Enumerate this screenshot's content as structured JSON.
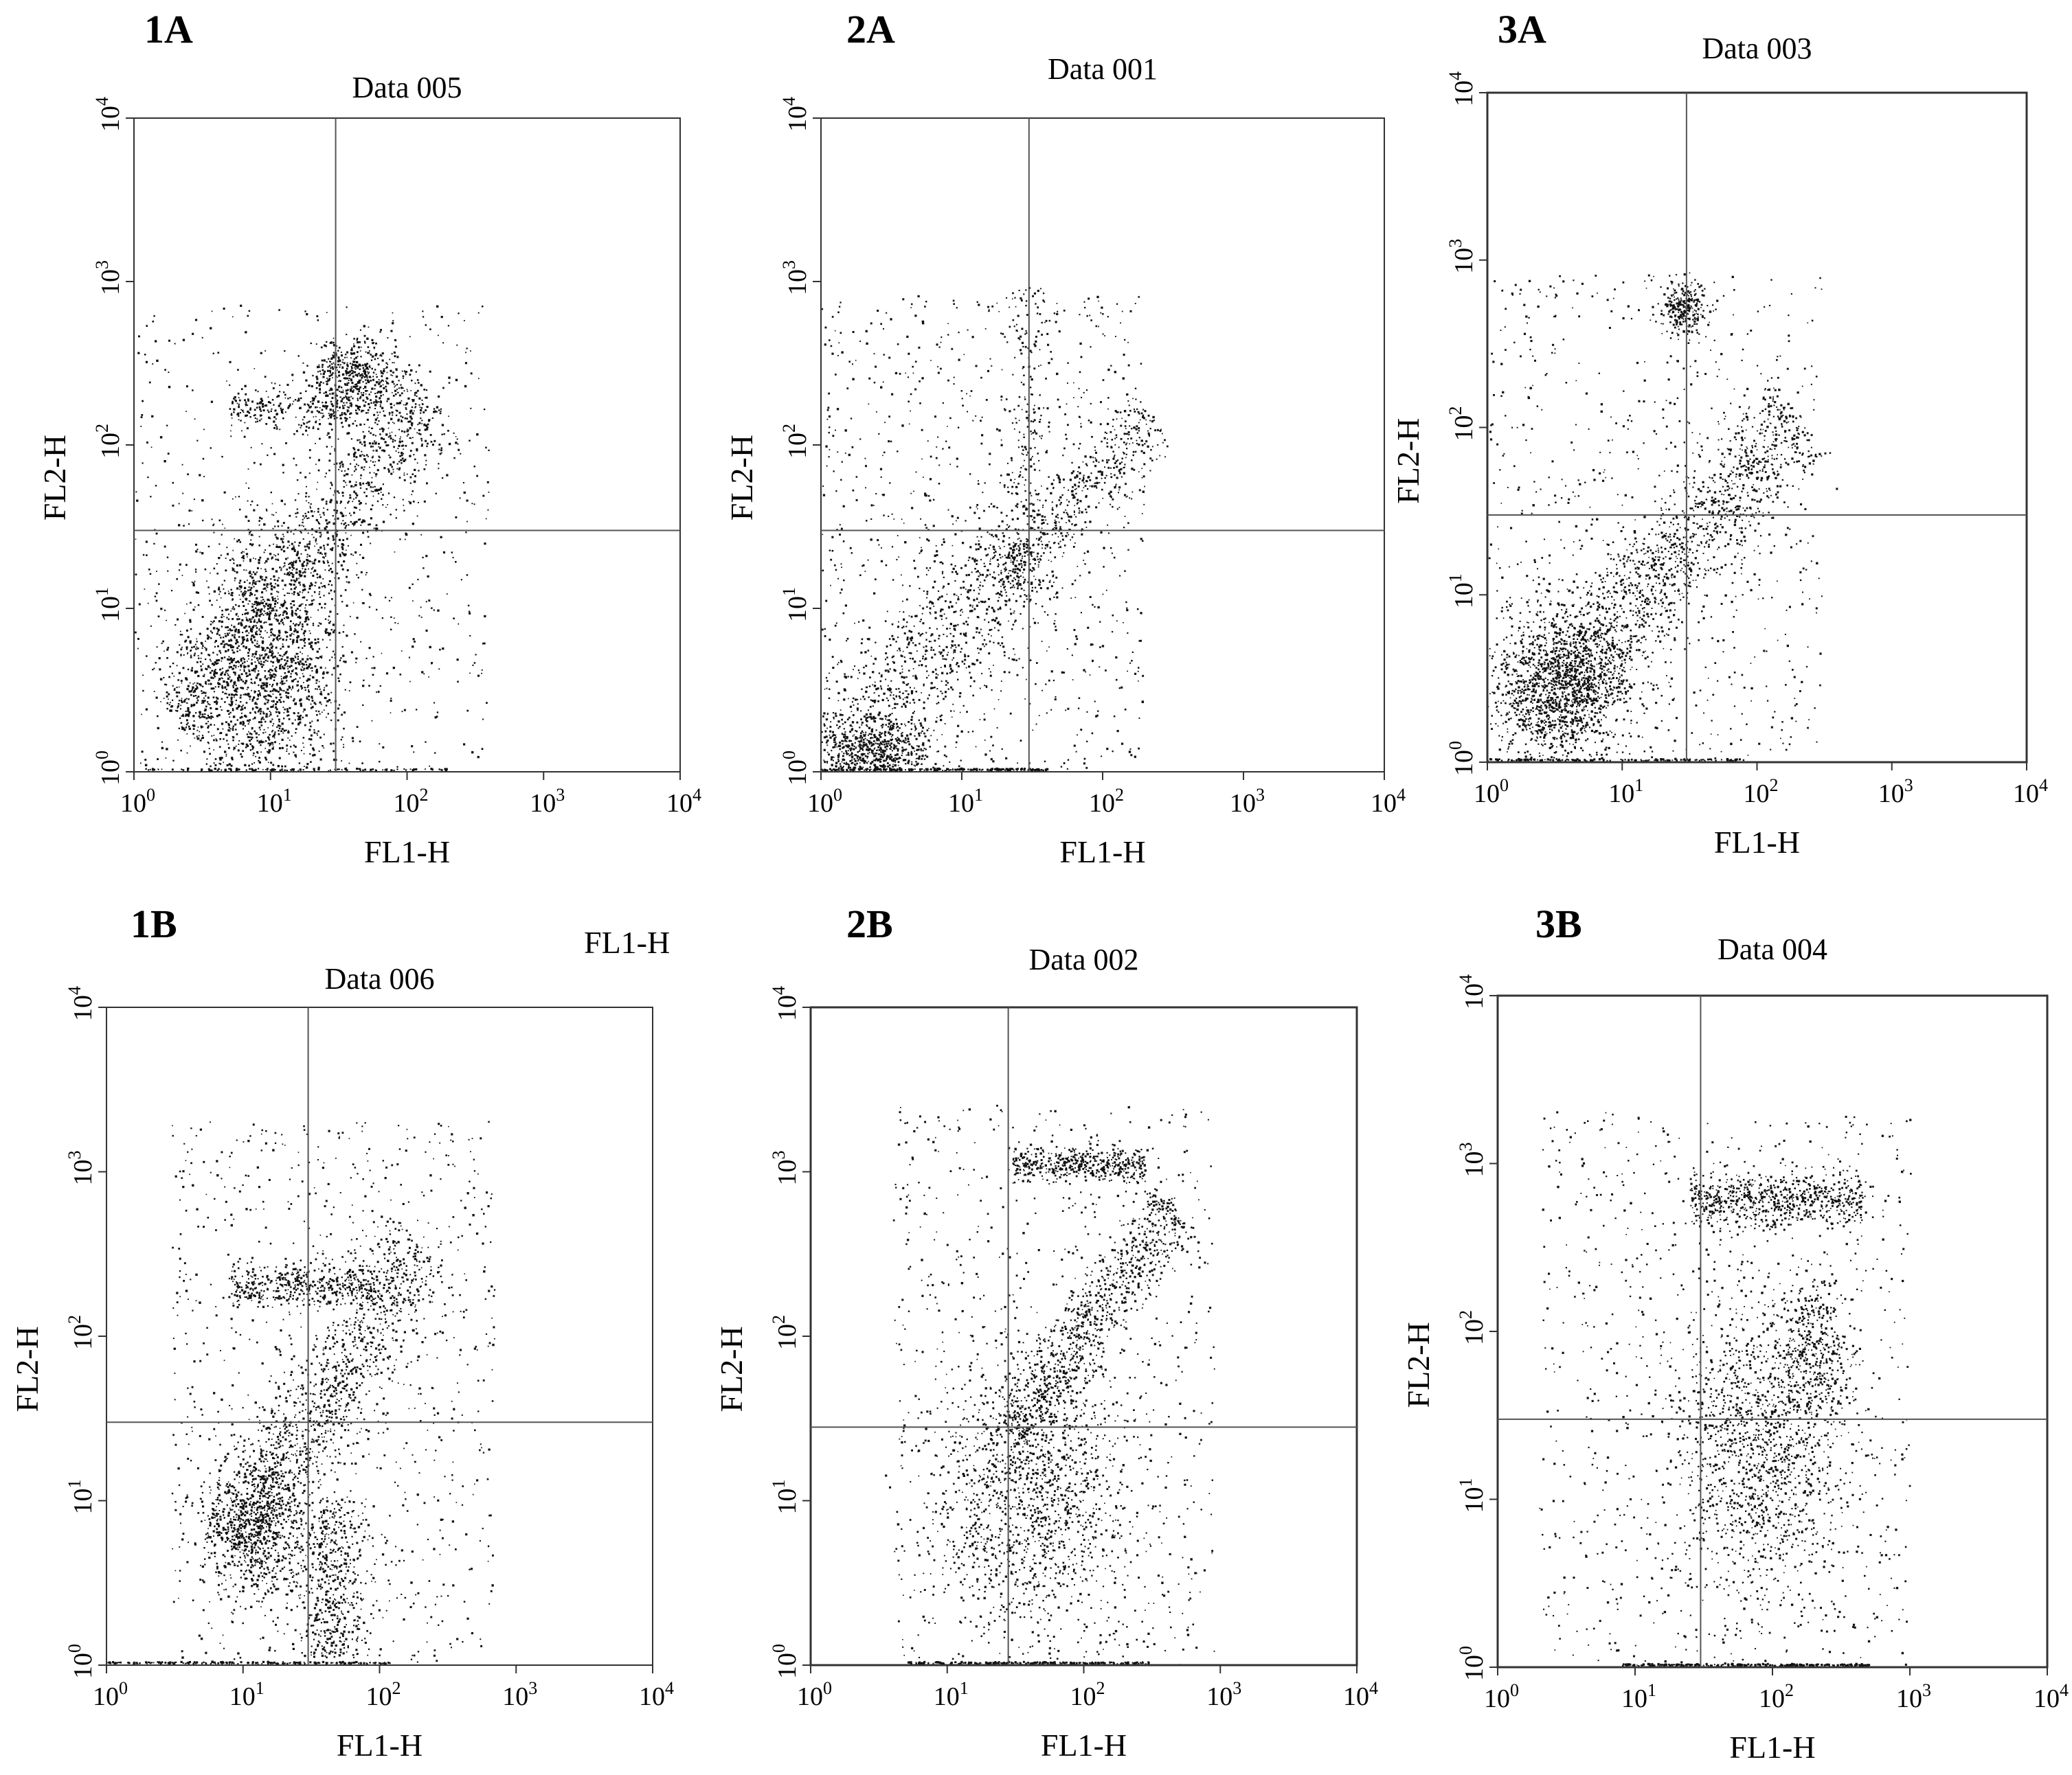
{
  "chart_data": [
    {
      "panel": "1A",
      "title": "Data  005",
      "type": "scatter",
      "xlabel": "FL1-H",
      "ylabel": "FL2-H",
      "x_scale": "log",
      "y_scale": "log",
      "xlim": [
        1,
        10000
      ],
      "ylim": [
        1,
        10000
      ],
      "x_tick_labels": [
        "10^0",
        "10^1",
        "10^2",
        "10^3",
        "10^4"
      ],
      "y_tick_labels": [
        "10^0",
        "10^1",
        "10^2",
        "10^3",
        "10^4"
      ],
      "quadrant_gate": {
        "x": 30,
        "y": 30
      },
      "populations": [
        {
          "kind": "blob",
          "x": 9,
          "y": 4,
          "sx": 0.3,
          "sy": 0.42,
          "n": 1700
        },
        {
          "kind": "diag",
          "x0": 2,
          "y0": 2,
          "x1": 150,
          "y1": 200,
          "w": 0.17,
          "n": 1300
        },
        {
          "kind": "blob",
          "x": 42,
          "y": 250,
          "sx": 0.16,
          "sy": 0.13,
          "n": 520
        },
        {
          "kind": "hband",
          "xmin": 5,
          "xmax": 40,
          "y": 160,
          "sy": 0.06,
          "n": 220
        },
        {
          "kind": "scatter",
          "xmin": 1,
          "xmax": 400,
          "ymin": 1,
          "ymax": 700,
          "n": 600
        },
        {
          "kind": "axisy",
          "xmin": 1.2,
          "xmax": 200,
          "n": 120
        }
      ]
    },
    {
      "panel": "2A",
      "title": "Data  001",
      "type": "scatter",
      "xlabel": "FL1-H",
      "ylabel": "FL2-H",
      "x_scale": "log",
      "y_scale": "log",
      "xlim": [
        1,
        10000
      ],
      "ylim": [
        1,
        10000
      ],
      "x_tick_labels": [
        "10^0",
        "10^1",
        "10^2",
        "10^3",
        "10^4"
      ],
      "y_tick_labels": [
        "10^0",
        "10^1",
        "10^2",
        "10^3",
        "10^4"
      ],
      "quadrant_gate": {
        "x": 30,
        "y": 30
      },
      "populations": [
        {
          "kind": "blob",
          "x": 2.2,
          "y": 1.3,
          "sx": 0.22,
          "sy": 0.1,
          "n": 600
        },
        {
          "kind": "diag",
          "x0": 1.5,
          "y0": 1.2,
          "x1": 30,
          "y1": 25,
          "w": 0.2,
          "n": 900
        },
        {
          "kind": "diag",
          "x0": 20,
          "y0": 15,
          "x1": 220,
          "y1": 150,
          "w": 0.1,
          "n": 500
        },
        {
          "kind": "scatter",
          "xmin": 1,
          "xmax": 200,
          "ymin": 1,
          "ymax": 800,
          "n": 900
        },
        {
          "kind": "vband",
          "x": 30,
          "ymin": 30,
          "ymax": 900,
          "sx": 0.08,
          "n": 160
        },
        {
          "kind": "axisy",
          "xmin": 1,
          "xmax": 40,
          "n": 220
        }
      ]
    },
    {
      "panel": "3A",
      "title": "Data 003",
      "type": "scatter",
      "xlabel": "FL1-H",
      "ylabel": "FL2-H",
      "x_scale": "log",
      "y_scale": "log",
      "xlim": [
        1,
        10000
      ],
      "ylim": [
        1,
        10000
      ],
      "x_tick_labels": [
        "10^0",
        "10^1",
        "10^2",
        "10^3",
        "10^4"
      ],
      "y_tick_labels": [
        "10^0",
        "10^1",
        "10^2",
        "10^3",
        "10^4"
      ],
      "quadrant_gate": {
        "x": 30,
        "y": 30
      },
      "populations": [
        {
          "kind": "blob",
          "x": 3.5,
          "y": 3.0,
          "sx": 0.26,
          "sy": 0.24,
          "n": 1300
        },
        {
          "kind": "diag",
          "x0": 2,
          "y0": 1.5,
          "x1": 200,
          "y1": 120,
          "w": 0.16,
          "n": 1500
        },
        {
          "kind": "blob",
          "x": 28,
          "y": 500,
          "sx": 0.08,
          "sy": 0.08,
          "n": 280
        },
        {
          "kind": "scatter",
          "xmin": 1,
          "xmax": 300,
          "ymin": 1,
          "ymax": 800,
          "n": 700
        },
        {
          "kind": "axisy",
          "xmin": 1,
          "xmax": 80,
          "n": 150
        }
      ]
    },
    {
      "panel": "1B",
      "title": "Data 006",
      "type": "scatter",
      "xlabel": "FL1-H",
      "ylabel": "FL2-H",
      "x_scale": "log",
      "y_scale": "log",
      "xlim": [
        1,
        10000
      ],
      "ylim": [
        1,
        10000
      ],
      "x_tick_labels": [
        "10^0",
        "10^1",
        "10^2",
        "10^3",
        "10^4"
      ],
      "y_tick_labels": [
        "10^0",
        "10^1",
        "10^2",
        "10^3",
        "10^4"
      ],
      "quadrant_gate": {
        "x": 30,
        "y": 30
      },
      "populations": [
        {
          "kind": "blob",
          "x": 12,
          "y": 7,
          "sx": 0.2,
          "sy": 0.22,
          "n": 700
        },
        {
          "kind": "diag",
          "x0": 8,
          "y0": 5,
          "x1": 200,
          "y1": 350,
          "w": 0.16,
          "n": 1200
        },
        {
          "kind": "hband",
          "xmin": 8,
          "xmax": 90,
          "y": 200,
          "sy": 0.06,
          "n": 420
        },
        {
          "kind": "vband",
          "x": 45,
          "ymin": 1.1,
          "ymax": 10,
          "sx": 0.14,
          "n": 500
        },
        {
          "kind": "scatter",
          "xmin": 3,
          "xmax": 700,
          "ymin": 1,
          "ymax": 2000,
          "n": 900
        },
        {
          "kind": "axisy",
          "xmin": 1,
          "xmax": 120,
          "n": 200
        }
      ]
    },
    {
      "panel": "2B",
      "title": "Data 002",
      "type": "scatter",
      "xlabel": "FL1-H",
      "ylabel": "FL2-H",
      "x_scale": "log",
      "y_scale": "log",
      "xlim": [
        1,
        10000
      ],
      "ylim": [
        1,
        10000
      ],
      "x_tick_labels": [
        "10^0",
        "10^1",
        "10^2",
        "10^3",
        "10^4"
      ],
      "y_tick_labels": [
        "10^0",
        "10^1",
        "10^2",
        "10^3",
        "10^4"
      ],
      "quadrant_gate": {
        "x": 28,
        "y": 28
      },
      "populations": [
        {
          "kind": "blob",
          "x": 40,
          "y": 10,
          "sx": 0.35,
          "sy": 0.4,
          "n": 1300
        },
        {
          "kind": "diag",
          "x0": 30,
          "y0": 25,
          "x1": 450,
          "y1": 600,
          "w": 0.12,
          "n": 900
        },
        {
          "kind": "hband",
          "xmin": 30,
          "xmax": 280,
          "y": 1100,
          "sy": 0.05,
          "n": 450
        },
        {
          "kind": "scatter",
          "xmin": 4,
          "xmax": 900,
          "ymin": 1,
          "ymax": 2500,
          "n": 800
        },
        {
          "kind": "axisy",
          "xmin": 5,
          "xmax": 300,
          "n": 200
        }
      ]
    },
    {
      "panel": "3B",
      "title": "Data 004",
      "type": "scatter",
      "xlabel": "FL1-H",
      "ylabel": "FL2-H",
      "x_scale": "log",
      "y_scale": "log",
      "xlim": [
        1,
        10000
      ],
      "ylim": [
        1,
        10000
      ],
      "x_tick_labels": [
        "10^0",
        "10^1",
        "10^2",
        "10^3",
        "10^4"
      ],
      "y_tick_labels": [
        "10^0",
        "10^1",
        "10^2",
        "10^3",
        "10^4"
      ],
      "quadrant_gate": {
        "x": 30,
        "y": 30
      },
      "populations": [
        {
          "kind": "hband",
          "xmin": 25,
          "xmax": 450,
          "y": 600,
          "sy": 0.08,
          "n": 700
        },
        {
          "kind": "blob",
          "x": 80,
          "y": 20,
          "sx": 0.3,
          "sy": 0.45,
          "n": 1300
        },
        {
          "kind": "blob",
          "x": 200,
          "y": 80,
          "sx": 0.15,
          "sy": 0.2,
          "n": 350
        },
        {
          "kind": "scatter",
          "xmin": 2,
          "xmax": 1000,
          "ymin": 1,
          "ymax": 2000,
          "n": 900
        },
        {
          "kind": "axisy",
          "xmin": 8,
          "xmax": 500,
          "n": 250
        }
      ]
    }
  ],
  "stray_label": "FL1-H"
}
